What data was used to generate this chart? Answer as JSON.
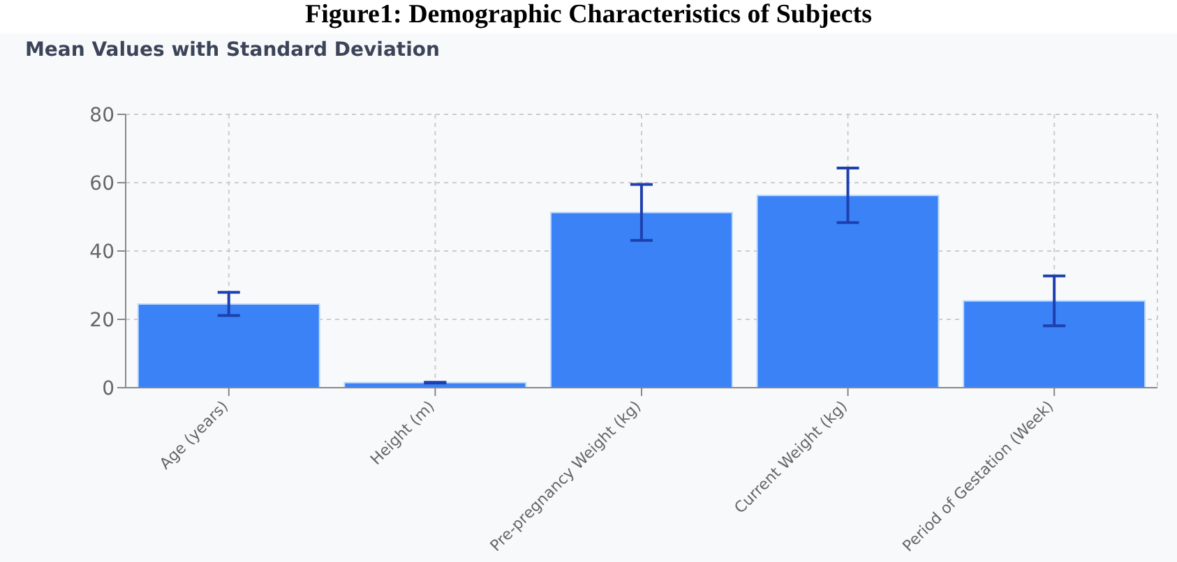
{
  "chart_data": {
    "type": "bar",
    "title": "Figure1: Demographic Characteristics of Subjects",
    "subtitle": "Mean Values with Standard Deviation",
    "categories": [
      "Age (years)",
      "Height (m)",
      "Pre-pregnancy Weight (kg)",
      "Current Weight (kg)",
      "Period of Gestation (Week)"
    ],
    "values": [
      24.5,
      1.5,
      51.3,
      56.3,
      25.4
    ],
    "errors": [
      3.4,
      0.1,
      8.2,
      8,
      7.3
    ],
    "color": "#3b82f6",
    "ylim": [
      0,
      80
    ],
    "yticks": [
      0,
      20,
      40,
      60,
      80
    ],
    "grid": true
  }
}
